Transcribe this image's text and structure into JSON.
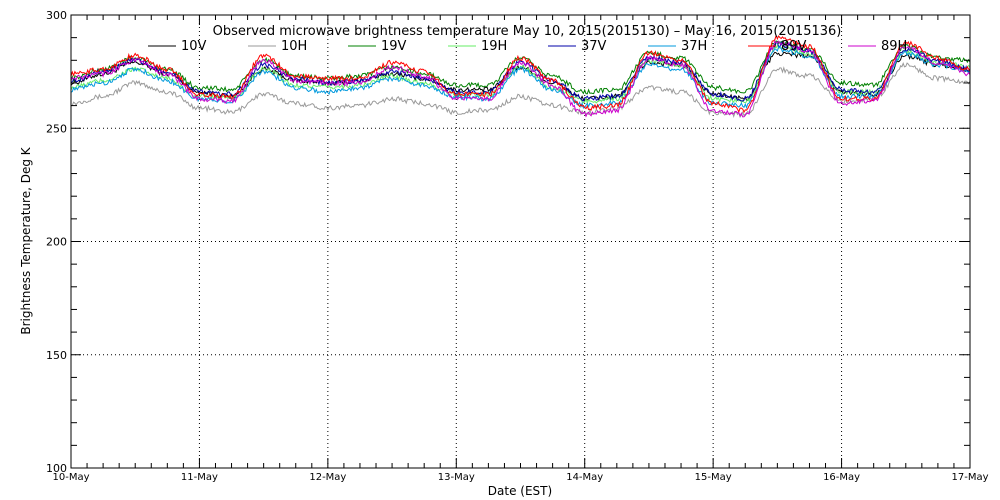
{
  "chart_data": {
    "type": "line",
    "title": "Observed microwave brightness temperature May 10, 2015(2015130) – May 16, 2015(2015136)",
    "xlabel": "Date (EST)",
    "ylabel": "Brightness Temperature, Deg K",
    "ylim": [
      100,
      300
    ],
    "yticks": [
      100,
      150,
      200,
      250,
      300
    ],
    "xlim": [
      "2015-05-10",
      "2015-05-17"
    ],
    "xticks": [
      "10-May",
      "11-May",
      "12-May",
      "13-May",
      "14-May",
      "15-May",
      "16-May",
      "17-May"
    ],
    "grid": true,
    "legend_position": "top",
    "x": [
      "2015-05-10T00:00",
      "2015-05-10T06:00",
      "2015-05-10T12:00",
      "2015-05-10T18:00",
      "2015-05-11T00:00",
      "2015-05-11T06:00",
      "2015-05-11T12:00",
      "2015-05-11T18:00",
      "2015-05-12T00:00",
      "2015-05-12T06:00",
      "2015-05-12T12:00",
      "2015-05-12T18:00",
      "2015-05-13T00:00",
      "2015-05-13T06:00",
      "2015-05-13T12:00",
      "2015-05-13T18:00",
      "2015-05-14T00:00",
      "2015-05-14T06:00",
      "2015-05-14T12:00",
      "2015-05-14T18:00",
      "2015-05-15T00:00",
      "2015-05-15T06:00",
      "2015-05-15T12:00",
      "2015-05-15T18:00",
      "2015-05-16T00:00",
      "2015-05-16T06:00",
      "2015-05-16T12:00",
      "2015-05-16T18:00",
      "2015-05-17T00:00"
    ],
    "series": [
      {
        "name": "10V",
        "color": "#000000",
        "values": [
          270,
          274,
          279,
          274,
          266,
          264,
          276,
          271,
          270,
          271,
          274,
          272,
          267,
          267,
          277,
          270,
          263,
          264,
          279,
          278,
          265,
          263,
          283,
          282,
          266,
          265,
          282,
          278,
          276
        ]
      },
      {
        "name": "10H",
        "color": "#9a9a9a",
        "values": [
          261,
          264,
          270,
          266,
          259,
          257,
          265,
          261,
          259,
          260,
          263,
          261,
          257,
          258,
          264,
          260,
          257,
          259,
          268,
          266,
          257,
          256,
          276,
          273,
          262,
          263,
          278,
          272,
          270
        ]
      },
      {
        "name": "19V",
        "color": "#008000",
        "values": [
          272,
          276,
          281,
          276,
          268,
          267,
          280,
          273,
          272,
          273,
          277,
          274,
          269,
          269,
          281,
          273,
          266,
          267,
          283,
          281,
          268,
          266,
          288,
          285,
          270,
          269,
          286,
          281,
          280
        ]
      },
      {
        "name": "19H",
        "color": "#66ee66",
        "values": [
          268,
          271,
          276,
          272,
          264,
          263,
          276,
          269,
          268,
          269,
          273,
          270,
          265,
          265,
          277,
          268,
          262,
          263,
          280,
          278,
          263,
          262,
          286,
          283,
          266,
          266,
          284,
          279,
          277
        ]
      },
      {
        "name": "37V",
        "color": "#0000aa",
        "values": [
          271,
          275,
          280,
          275,
          266,
          265,
          278,
          272,
          270,
          271,
          275,
          272,
          266,
          266,
          279,
          271,
          263,
          264,
          281,
          279,
          265,
          263,
          287,
          284,
          267,
          266,
          285,
          280,
          276
        ]
      },
      {
        "name": "37H",
        "color": "#0099dd",
        "values": [
          267,
          270,
          276,
          271,
          263,
          262,
          275,
          268,
          266,
          268,
          272,
          269,
          264,
          263,
          276,
          267,
          260,
          261,
          278,
          276,
          261,
          260,
          285,
          282,
          264,
          264,
          283,
          278,
          275
        ]
      },
      {
        "name": "89V",
        "color": "#ff0000",
        "values": [
          274,
          276,
          282,
          276,
          265,
          264,
          282,
          273,
          272,
          272,
          279,
          275,
          265,
          265,
          281,
          271,
          259,
          260,
          283,
          280,
          261,
          258,
          290,
          286,
          263,
          263,
          288,
          281,
          276
        ]
      },
      {
        "name": "89H",
        "color": "#cc00cc",
        "values": [
          272,
          274,
          280,
          274,
          263,
          262,
          280,
          271,
          270,
          270,
          277,
          273,
          263,
          263,
          279,
          269,
          256,
          258,
          281,
          278,
          258,
          256,
          288,
          284,
          261,
          262,
          286,
          279,
          274
        ]
      }
    ]
  }
}
